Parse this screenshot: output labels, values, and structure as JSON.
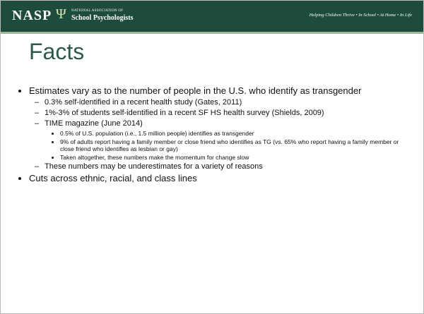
{
  "header": {
    "logo": "NASP",
    "logo_symbol": "Ψ",
    "org_line1": "NATIONAL ASSOCIATION OF",
    "org_line2": "School Psychologists",
    "tagline": "Helping Children Thrive • In School • At Home • In Life"
  },
  "title": "Facts",
  "bullets": [
    {
      "text": "Estimates vary as to the number of people in the U.S. who identify as transgender",
      "children": [
        {
          "text": "0.3% self-identified in a recent health study (Gates, 2011)"
        },
        {
          "text": "1%-3% of students self-identified in a recent SF HS health survey (Shields, 2009)"
        },
        {
          "text": "TIME magazine (June 2014)",
          "children": [
            {
              "text": "0.5% of U.S. population (i.e., 1.5 million people)  identifies as transgender"
            },
            {
              "text": "9% of adults report having a family member  or close friend who identifies as TG (vs. 65% who report having a family member or close friend who identifies as lesbian or gay)"
            },
            {
              "text": "Taken altogether, these numbers make the momentum for change slow"
            }
          ]
        },
        {
          "text": "These numbers may be underestimates for a variety of reasons"
        }
      ]
    },
    {
      "text": "Cuts across ethnic, racial, and class lines"
    }
  ]
}
